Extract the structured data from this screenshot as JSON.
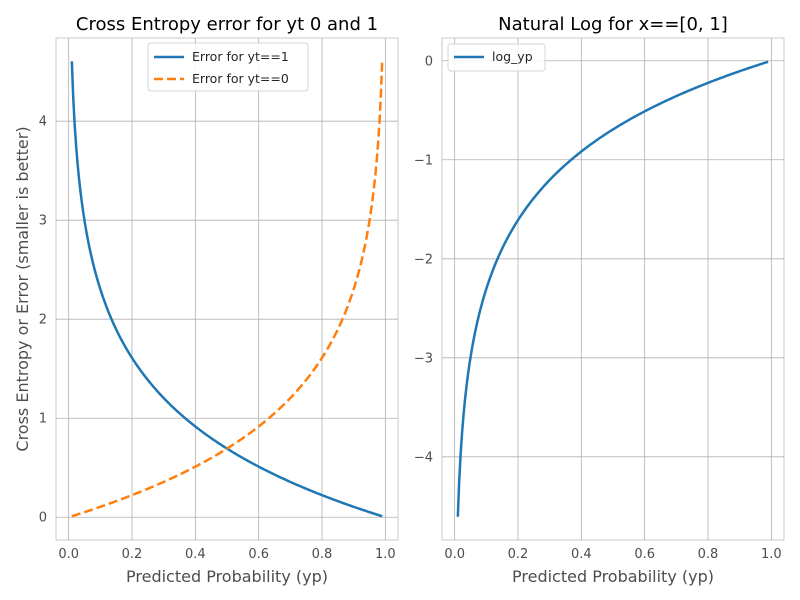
{
  "chart_data": [
    {
      "type": "line",
      "title": "Cross Entropy error for yt 0 and 1",
      "xlabel": "Predicted Probability (yp)",
      "ylabel": "Cross Entropy or Error (smaller is better)",
      "xlim": [
        -0.04,
        1.04
      ],
      "ylim": [
        -0.23,
        4.84
      ],
      "xticks": [
        0.0,
        0.2,
        0.4,
        0.6,
        0.8,
        1.0
      ],
      "xtick_labels": [
        "0.0",
        "0.2",
        "0.4",
        "0.6",
        "0.8",
        "1.0"
      ],
      "yticks": [
        0,
        1,
        2,
        3,
        4
      ],
      "ytick_labels": [
        "0",
        "1",
        "2",
        "3",
        "4"
      ],
      "grid": true,
      "legend_position": "top-center",
      "series": [
        {
          "name": "Error for yt==1",
          "color": "#1f77b4",
          "line_style": "solid",
          "function": "-ln(yp)",
          "x": [
            0.01,
            0.02,
            0.03,
            0.05,
            0.08,
            0.1,
            0.15,
            0.2,
            0.25,
            0.3,
            0.35,
            0.4,
            0.45,
            0.5,
            0.55,
            0.6,
            0.65,
            0.7,
            0.75,
            0.8,
            0.85,
            0.9,
            0.95,
            0.99
          ],
          "y": [
            4.605,
            3.912,
            3.507,
            2.996,
            2.526,
            2.303,
            1.897,
            1.609,
            1.386,
            1.204,
            1.05,
            0.916,
            0.799,
            0.693,
            0.598,
            0.511,
            0.431,
            0.357,
            0.288,
            0.223,
            0.163,
            0.105,
            0.051,
            0.01
          ]
        },
        {
          "name": "Error for yt==0",
          "color": "#ff7f0e",
          "line_style": "dashed",
          "function": "-ln(1-yp)",
          "x": [
            0.01,
            0.05,
            0.1,
            0.15,
            0.2,
            0.25,
            0.3,
            0.35,
            0.4,
            0.45,
            0.5,
            0.55,
            0.6,
            0.65,
            0.7,
            0.75,
            0.8,
            0.85,
            0.9,
            0.92,
            0.95,
            0.97,
            0.98,
            0.99
          ],
          "y": [
            0.01,
            0.051,
            0.105,
            0.163,
            0.223,
            0.288,
            0.357,
            0.431,
            0.511,
            0.598,
            0.693,
            0.799,
            0.916,
            1.05,
            1.204,
            1.386,
            1.609,
            1.897,
            2.303,
            2.526,
            2.996,
            3.507,
            3.912,
            4.605
          ]
        }
      ]
    },
    {
      "type": "line",
      "title": "Natural Log for x==[0, 1]",
      "xlabel": "Predicted Probability (yp)",
      "ylabel": "",
      "xlim": [
        -0.04,
        1.04
      ],
      "ylim": [
        -4.84,
        0.23
      ],
      "xticks": [
        0.0,
        0.2,
        0.4,
        0.6,
        0.8,
        1.0
      ],
      "xtick_labels": [
        "0.0",
        "0.2",
        "0.4",
        "0.6",
        "0.8",
        "1.0"
      ],
      "yticks": [
        0,
        -1,
        -2,
        -3,
        -4
      ],
      "ytick_labels": [
        "0",
        "−1",
        "−2",
        "−3",
        "−4"
      ],
      "grid": true,
      "legend_position": "top-left",
      "series": [
        {
          "name": "log_yp",
          "color": "#1f77b4",
          "line_style": "solid",
          "function": "ln(yp)",
          "x": [
            0.01,
            0.02,
            0.03,
            0.05,
            0.08,
            0.1,
            0.15,
            0.2,
            0.25,
            0.3,
            0.35,
            0.4,
            0.45,
            0.5,
            0.55,
            0.6,
            0.65,
            0.7,
            0.75,
            0.8,
            0.85,
            0.9,
            0.95,
            0.99
          ],
          "y": [
            -4.605,
            -3.912,
            -3.507,
            -2.996,
            -2.526,
            -2.303,
            -1.897,
            -1.609,
            -1.386,
            -1.204,
            -1.05,
            -0.916,
            -0.799,
            -0.693,
            -0.598,
            -0.511,
            -0.431,
            -0.357,
            -0.288,
            -0.223,
            -0.163,
            -0.105,
            -0.051,
            -0.01
          ]
        }
      ]
    }
  ]
}
